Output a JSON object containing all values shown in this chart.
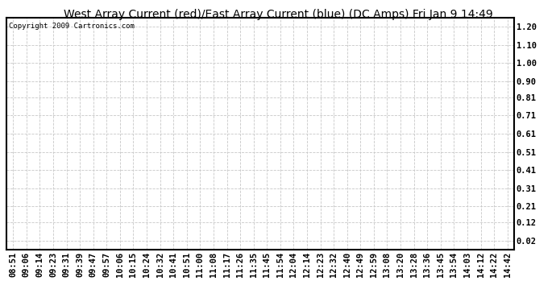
{
  "title": "West Array Current (red)/East Array Current (blue) (DC Amps) Fri Jan 9 14:49",
  "copyright": "Copyright 2009 Cartronics.com",
  "yticks": [
    0.02,
    0.12,
    0.21,
    0.31,
    0.41,
    0.51,
    0.61,
    0.71,
    0.81,
    0.9,
    1.0,
    1.1,
    1.2
  ],
  "ylim": [
    0.02,
    1.2
  ],
  "xtick_labels": [
    "08:51",
    "09:06",
    "09:14",
    "09:23",
    "09:31",
    "09:39",
    "09:47",
    "09:57",
    "10:06",
    "10:15",
    "10:24",
    "10:32",
    "10:41",
    "10:51",
    "11:00",
    "11:08",
    "11:17",
    "11:26",
    "11:35",
    "11:45",
    "11:54",
    "12:04",
    "12:14",
    "12:23",
    "12:32",
    "12:40",
    "12:49",
    "12:59",
    "13:08",
    "13:20",
    "13:28",
    "13:36",
    "13:45",
    "13:54",
    "14:03",
    "14:12",
    "14:22",
    "14:42"
  ],
  "background_color": "#ffffff",
  "grid_color": "#c8c8c8",
  "title_fontsize": 10,
  "copyright_fontsize": 6.5,
  "tick_fontsize": 7.5,
  "border_color": "#000000",
  "title_font": "DejaVu Sans",
  "mono_font": "monospace"
}
